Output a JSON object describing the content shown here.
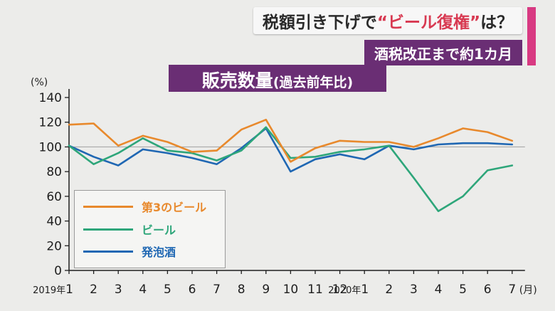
{
  "caption": {
    "line1_before": "税額引き下げで",
    "line1_highlight": "“ビール復権”",
    "line1_after": "は？",
    "line2": "酒税改正まで約1カ月"
  },
  "chart_data": {
    "type": "line",
    "title_main": "販売数量",
    "title_sub": "(過去前年比)",
    "y_unit": "(%)",
    "x_unit": "(月)",
    "ylim": [
      0,
      140
    ],
    "y_ticks": [
      "0",
      "20",
      "40",
      "60",
      "80",
      "100",
      "120",
      "140"
    ],
    "reference_line": 100,
    "x_labels": [
      {
        "year": "2019年",
        "month": "1"
      },
      {
        "month": "2"
      },
      {
        "month": "3"
      },
      {
        "month": "4"
      },
      {
        "month": "5"
      },
      {
        "month": "6"
      },
      {
        "month": "7"
      },
      {
        "month": "8"
      },
      {
        "month": "9"
      },
      {
        "month": "10"
      },
      {
        "month": "11"
      },
      {
        "month": "12"
      },
      {
        "year": "2020年",
        "month": "1"
      },
      {
        "month": "2"
      },
      {
        "month": "3"
      },
      {
        "month": "4"
      },
      {
        "month": "5"
      },
      {
        "month": "6"
      },
      {
        "month": "7"
      }
    ],
    "series": [
      {
        "name": "第3のビール",
        "color": "#e8892c",
        "values": [
          118,
          119,
          101,
          109,
          104,
          96,
          97,
          114,
          122,
          88,
          99,
          105,
          104,
          104,
          100,
          107,
          115,
          112,
          105
        ]
      },
      {
        "name": "ビール",
        "color": "#2ea67a",
        "values": [
          101,
          86,
          95,
          107,
          97,
          95,
          89,
          97,
          116,
          91,
          92,
          96,
          98,
          101,
          75,
          48,
          60,
          81,
          85
        ]
      },
      {
        "name": "発泡酒",
        "color": "#1f67b3",
        "values": [
          101,
          92,
          85,
          98,
          95,
          91,
          86,
          99,
          115,
          80,
          90,
          94,
          90,
          101,
          98,
          102,
          103,
          103,
          102
        ]
      }
    ],
    "legend_position": "lower-left"
  }
}
